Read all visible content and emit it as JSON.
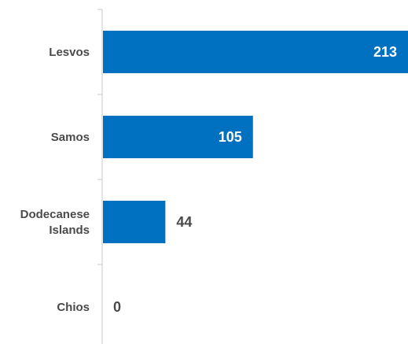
{
  "chart_data": {
    "type": "bar",
    "orientation": "horizontal",
    "categories": [
      "Lesvos",
      "Samos",
      "Dodecanese Islands",
      "Chios"
    ],
    "category_lines": [
      [
        "Lesvos"
      ],
      [
        "Samos"
      ],
      [
        "Dodecanese",
        "Islands"
      ],
      [
        "Chios"
      ]
    ],
    "values": [
      213,
      105,
      44,
      0
    ],
    "title": "",
    "xlabel": "",
    "ylabel": "",
    "xlim": [
      0,
      213
    ],
    "grid": false,
    "legend": "none",
    "bar_color": "#0070c0",
    "label_inside_color": "#ffffff",
    "label_outside_color": "#4a4a4a",
    "axis_color": "#c8c8c8"
  }
}
